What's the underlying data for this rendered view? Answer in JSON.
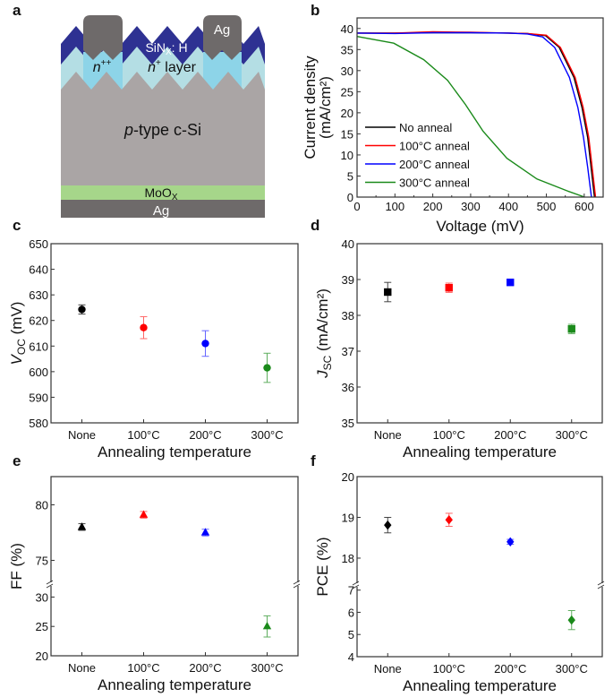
{
  "panel_letters": {
    "a": "a",
    "b": "b",
    "c": "c",
    "d": "d",
    "e": "e",
    "f": "f"
  },
  "diagram": {
    "sinx_label_main": "SiN",
    "sinx_label_sub": "X",
    "sinx_label_rest": ": H",
    "ag_top": "Ag",
    "npp_main": "n",
    "npp_sup": "++",
    "np_main": "n",
    "np_sup": "+",
    "np_rest": " layer",
    "psi_main": "p",
    "psi_rest": "-type c-Si",
    "moox_main": "MoO",
    "moox_sub": "X",
    "ag_bottom": "Ag",
    "colors": {
      "sinx": "#2e3192",
      "nplus": "#b4dee4",
      "npp": "#8dd4e8",
      "psi": "#aaa5a5",
      "moox": "#a6d68a",
      "ag": "#6e6a6a"
    }
  },
  "chart_data": [
    {
      "id": "b",
      "type": "line",
      "xlabel": "Voltage (mV)",
      "ylabel_lines": [
        "Current density",
        "(mA/cm²)"
      ],
      "xlim": [
        0,
        650
      ],
      "ylim": [
        0,
        42.5
      ],
      "xticks": [
        0,
        100,
        200,
        300,
        400,
        500,
        600
      ],
      "yticks": [
        0,
        5,
        10,
        15,
        20,
        25,
        30,
        35,
        40
      ],
      "legend_position": "bottom-left",
      "series": [
        {
          "name": "No anneal",
          "color": "#000000",
          "x": [
            0,
            100,
            200,
            300,
            400,
            450,
            498,
            534,
            573,
            594,
            609,
            618,
            627
          ],
          "y": [
            38.9,
            38.9,
            39.0,
            39.0,
            38.9,
            38.8,
            38.3,
            35.5,
            28.4,
            21.3,
            14.2,
            7.1,
            0
          ]
        },
        {
          "name": "100°C anneal",
          "color": "#ff0000",
          "x": [
            0,
            100,
            200,
            300,
            400,
            450,
            500,
            537,
            576,
            597,
            612,
            621,
            630
          ],
          "y": [
            38.9,
            38.9,
            39.2,
            39.1,
            38.9,
            38.8,
            38.4,
            35.5,
            28.4,
            21.3,
            14.2,
            7.1,
            0
          ]
        },
        {
          "name": "200°C anneal",
          "color": "#0000ff",
          "x": [
            0,
            100,
            200,
            300,
            400,
            450,
            490,
            522,
            561,
            583,
            598,
            609,
            619
          ],
          "y": [
            38.9,
            38.8,
            39.0,
            39.0,
            38.9,
            38.7,
            38.0,
            35.5,
            28.4,
            21.3,
            14.2,
            7.1,
            0
          ]
        },
        {
          "name": "300°C anneal",
          "color": "#1a8a1a",
          "x": [
            0,
            97,
            176,
            239,
            286,
            333,
            396,
            475,
            554,
            601
          ],
          "y": [
            38.1,
            36.5,
            32.6,
            27.7,
            22.0,
            15.6,
            9.2,
            4.3,
            1.5,
            0
          ]
        }
      ]
    },
    {
      "id": "c",
      "type": "scatter",
      "marker": "circle",
      "categories": [
        "None",
        "100°C",
        "200°C",
        "300°C"
      ],
      "xlabel": "Annealing temperature",
      "ylabel": {
        "main": "V",
        "sub": "OC",
        "rest": " (mV)"
      },
      "ylim": [
        580,
        650
      ],
      "yticks": [
        580,
        590,
        600,
        610,
        620,
        630,
        640,
        650
      ],
      "values": [
        624.3,
        617.2,
        611.0,
        601.5
      ],
      "errors": [
        1.8,
        4.3,
        5.0,
        5.7
      ]
    },
    {
      "id": "d",
      "type": "scatter",
      "marker": "square",
      "categories": [
        "None",
        "100°C",
        "200°C",
        "300°C"
      ],
      "xlabel": "Annealing temperature",
      "ylabel": {
        "main": "J",
        "sub": "SC",
        "rest": " (mA/cm²)"
      },
      "ylim": [
        35,
        40
      ],
      "yticks": [
        35,
        36,
        37,
        38,
        39,
        40
      ],
      "values": [
        38.65,
        38.77,
        38.92,
        37.62
      ],
      "errors": [
        0.27,
        0.13,
        0.05,
        0.13
      ]
    },
    {
      "id": "e",
      "type": "scatter",
      "marker": "triangle",
      "categories": [
        "None",
        "100°C",
        "200°C",
        "300°C"
      ],
      "xlabel": "Annealing temperature",
      "ylabel": {
        "main": "FF (%)",
        "sub": "",
        "rest": ""
      },
      "broken_axis": {
        "upper": [
          72.86,
          82.54
        ],
        "lower": [
          20,
          32.2
        ]
      },
      "yticks": [
        20,
        25,
        30,
        75,
        80
      ],
      "values": [
        78.0,
        79.1,
        77.5,
        25.0
      ],
      "errors": [
        0.3,
        0.3,
        0.3,
        1.8
      ]
    },
    {
      "id": "f",
      "type": "scatter",
      "marker": "diamond",
      "categories": [
        "None",
        "100°C",
        "200°C",
        "300°C"
      ],
      "xlabel": "Annealing temperature",
      "ylabel": {
        "main": "PCE (%)",
        "sub": "",
        "rest": ""
      },
      "broken_axis": {
        "upper": [
          17.34,
          20
        ],
        "lower": [
          4,
          7.23
        ]
      },
      "yticks": [
        4,
        5,
        6,
        7,
        18,
        19,
        20
      ],
      "values": [
        18.81,
        18.94,
        18.4,
        5.65
      ],
      "errors": [
        0.19,
        0.16,
        0.06,
        0.43
      ]
    }
  ],
  "category_colors": [
    "#000000",
    "#ff0000",
    "#0000ff",
    "#1a8a1a"
  ],
  "error_colors": [
    "#444444",
    "#ff6666",
    "#6666ff",
    "#5fae5f"
  ]
}
